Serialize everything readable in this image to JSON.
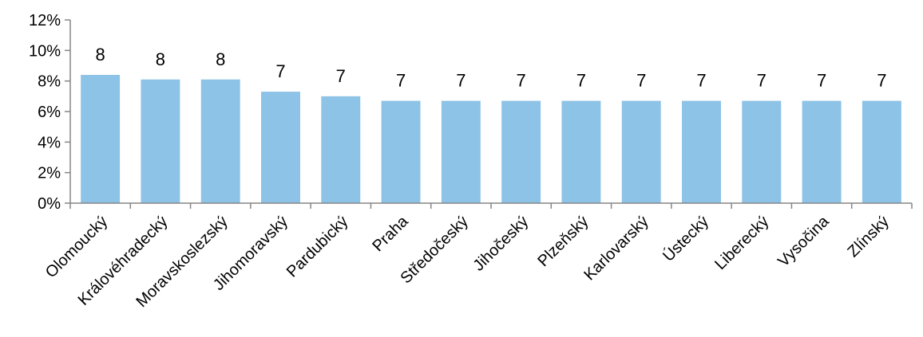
{
  "chart_data": {
    "type": "bar",
    "categories": [
      "Olomoucký",
      "Královéhradecký",
      "Moravskoslezský",
      "Jihomoravský",
      "Pardubický",
      "Praha",
      "Středočeský",
      "Jihočeský",
      "Plzeňský",
      "Karlovarský",
      "Ústecký",
      "Liberecký",
      "Vysočina",
      "Zlínský"
    ],
    "values": [
      0.084,
      0.081,
      0.081,
      0.073,
      0.07,
      0.067,
      0.067,
      0.067,
      0.067,
      0.067,
      0.067,
      0.067,
      0.067,
      0.067
    ],
    "data_labels": [
      "8",
      "8",
      "8",
      "7",
      "7",
      "7",
      "7",
      "7",
      "7",
      "7",
      "7",
      "7",
      "7",
      "7"
    ],
    "y_ticks": [
      "0%",
      "2%",
      "4%",
      "6%",
      "8%",
      "10%",
      "12%"
    ],
    "ylim": [
      0,
      0.12
    ],
    "bar_color": "#8DC3E6",
    "axis_color": "#868686",
    "grid": false,
    "legend": "none"
  }
}
